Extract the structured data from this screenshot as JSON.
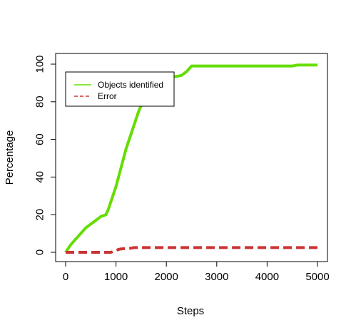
{
  "chart_data": {
    "type": "line",
    "title": "",
    "xlabel": "Steps",
    "ylabel": "Percentage",
    "xlim": [
      0,
      5000
    ],
    "ylim": [
      0,
      100
    ],
    "x_ticks": [
      0,
      1000,
      2000,
      3000,
      4000,
      5000
    ],
    "y_ticks": [
      0,
      20,
      40,
      60,
      80,
      100
    ],
    "grid": false,
    "legend_position": "top-left",
    "series": [
      {
        "name": "Objects identified",
        "color": "#66dd00",
        "line_style": "solid",
        "x": [
          0,
          100,
          200,
          300,
          400,
          500,
          600,
          700,
          800,
          850,
          900,
          1000,
          1100,
          1200,
          1300,
          1400,
          1450,
          1500,
          1600,
          1700,
          1800,
          1900,
          2000,
          2100,
          2200,
          2300,
          2400,
          2450,
          2500,
          2600,
          3000,
          3500,
          4000,
          4500,
          4600,
          5000
        ],
        "y": [
          0,
          4,
          7,
          10,
          13,
          15,
          17,
          19,
          20,
          23,
          27,
          35,
          45,
          55,
          63,
          71,
          75,
          78,
          79,
          84,
          88,
          91,
          92,
          93,
          93.5,
          94,
          96,
          97.5,
          99,
          99,
          99,
          99,
          99,
          99,
          99.5,
          99.5
        ]
      },
      {
        "name": "Error",
        "color": "#cc3333",
        "line_style": "dashed",
        "x": [
          0,
          300,
          600,
          900,
          1000,
          1050,
          1100,
          1200,
          1300,
          1350,
          1500,
          2000,
          3000,
          4000,
          5000
        ],
        "y": [
          0,
          0,
          0,
          0,
          1,
          1.5,
          1.8,
          2,
          2.2,
          2.5,
          2.5,
          2.5,
          2.5,
          2.5,
          2.5
        ]
      }
    ]
  }
}
